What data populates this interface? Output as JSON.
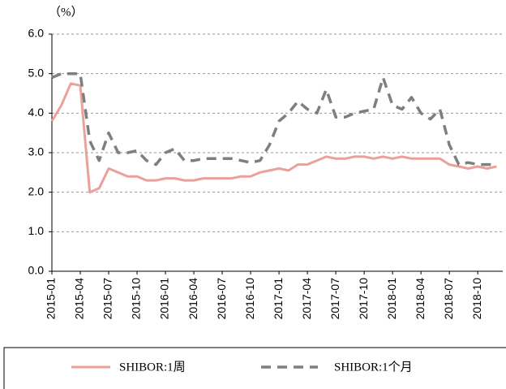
{
  "chart_data": {
    "type": "line",
    "y_axis_label": "（%）",
    "categories": [
      "2015-01",
      null,
      null,
      "2015-04",
      null,
      null,
      "2015-07",
      null,
      null,
      "2015-10",
      null,
      null,
      "2016-01",
      null,
      null,
      "2016-04",
      null,
      null,
      "2016-07",
      null,
      null,
      "2016-10",
      null,
      null,
      "2017-01",
      null,
      null,
      "2017-04",
      null,
      null,
      "2017-07",
      null,
      null,
      "2017-10",
      null,
      null,
      "2018-01",
      null,
      null,
      "2018-04",
      null,
      null,
      "2018-07",
      null,
      null,
      "2018-10",
      null,
      null
    ],
    "series": [
      {
        "name": "SHIBOR:1周",
        "color": "#eba19b",
        "dash": false,
        "values": [
          3.8,
          4.2,
          4.75,
          4.7,
          2.0,
          2.1,
          2.6,
          2.5,
          2.4,
          2.4,
          2.3,
          2.3,
          2.35,
          2.35,
          2.3,
          2.3,
          2.35,
          2.35,
          2.35,
          2.35,
          2.4,
          2.4,
          2.5,
          2.55,
          2.6,
          2.55,
          2.7,
          2.7,
          2.8,
          2.9,
          2.85,
          2.85,
          2.9,
          2.9,
          2.85,
          2.9,
          2.85,
          2.9,
          2.85,
          2.85,
          2.85,
          2.85,
          2.7,
          2.65,
          2.6,
          2.65,
          2.6,
          2.65
        ]
      },
      {
        "name": "SHIBOR:1个月",
        "color": "#7f7f7f",
        "dash": true,
        "values": [
          4.9,
          5.0,
          5.0,
          5.0,
          3.3,
          2.8,
          3.5,
          3.0,
          3.0,
          3.05,
          2.8,
          2.7,
          3.0,
          3.1,
          2.8,
          2.8,
          2.85,
          2.85,
          2.85,
          2.85,
          2.8,
          2.75,
          2.8,
          3.2,
          3.8,
          4.0,
          4.3,
          4.1,
          4.0,
          4.6,
          3.9,
          3.9,
          4.0,
          4.05,
          4.1,
          4.9,
          4.2,
          4.1,
          4.4,
          4.0,
          3.85,
          4.1,
          3.2,
          2.7,
          2.75,
          2.7,
          2.7,
          2.7
        ]
      }
    ],
    "ylim": [
      0,
      6
    ],
    "yticks": [
      {
        "value": 0,
        "label": "0.0"
      },
      {
        "value": 1,
        "label": "1.0"
      },
      {
        "value": 2,
        "label": "2.0"
      },
      {
        "value": 3,
        "label": "3.0"
      },
      {
        "value": 4,
        "label": "4.0"
      },
      {
        "value": 5,
        "label": "5.0"
      },
      {
        "value": 6,
        "label": "6.0"
      }
    ],
    "grid": true,
    "legend": "bottom"
  }
}
